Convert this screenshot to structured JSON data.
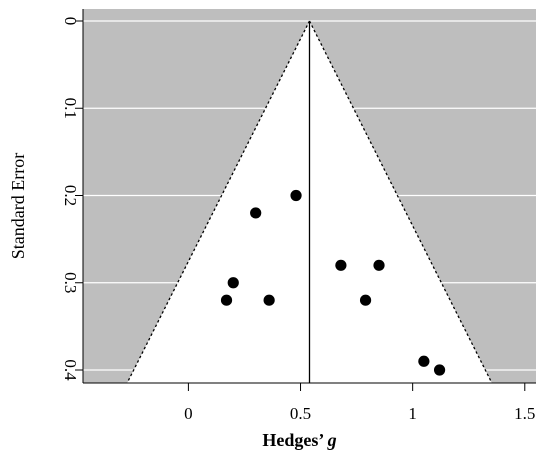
{
  "chart_data": {
    "type": "scatter",
    "plot_kind": "funnel",
    "xlabel_text": "Hedges’",
    "xlabel_symbol": "g",
    "ylabel": "Standard Error",
    "xlim": [
      -0.47,
      1.55
    ],
    "ylim": [
      0,
      0.42
    ],
    "y_inverted": true,
    "x_ticks": [
      0,
      0.5,
      1,
      1.5
    ],
    "x_tick_labels": [
      "0",
      "0.5",
      "1",
      "1.5"
    ],
    "y_ticks": [
      0,
      0.1,
      0.2,
      0.3,
      0.4
    ],
    "y_tick_labels": [
      "0",
      "0.1",
      "0.2",
      "0.3",
      "0.4"
    ],
    "summary_effect": 0.54,
    "funnel_ci_multiplier": 1.96,
    "grid": true,
    "colors": {
      "outside_funnel": "#bebebe",
      "inside_funnel": "#ffffff",
      "gridline": "#ffffff",
      "points": "#000000",
      "lines": "#000000"
    },
    "points": [
      {
        "x": 0.3,
        "y": 0.22
      },
      {
        "x": 0.48,
        "y": 0.2
      },
      {
        "x": 0.2,
        "y": 0.3
      },
      {
        "x": 0.17,
        "y": 0.32
      },
      {
        "x": 0.36,
        "y": 0.32
      },
      {
        "x": 0.68,
        "y": 0.28
      },
      {
        "x": 0.85,
        "y": 0.28
      },
      {
        "x": 0.79,
        "y": 0.32
      },
      {
        "x": 1.05,
        "y": 0.39
      },
      {
        "x": 1.12,
        "y": 0.4
      }
    ]
  }
}
